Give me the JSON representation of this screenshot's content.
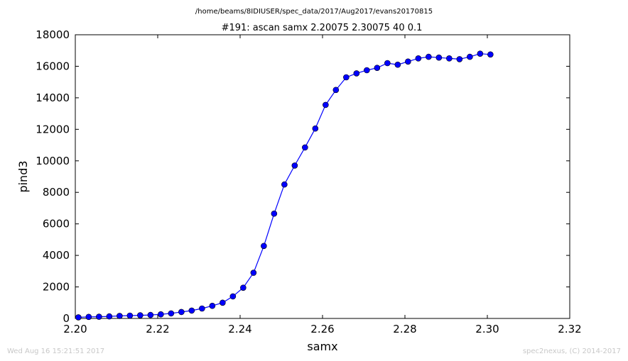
{
  "page": {
    "suptitle": "/home/beams/8IDIUSER/spec_data/2017/Aug2017/evans20170815",
    "footer_left": "Wed Aug 16 15:21:51 2017",
    "footer_right": "spec2nexus, (C) 2014-2017"
  },
  "chart_data": {
    "type": "line",
    "title": "#191: ascan  samx 2.20075 2.30075  40 0.1",
    "xlabel": "samx",
    "ylabel": "pind3",
    "xlim": [
      2.2,
      2.32
    ],
    "ylim": [
      0,
      18000
    ],
    "x_ticks": [
      "2.20",
      "2.22",
      "2.24",
      "2.26",
      "2.28",
      "2.30",
      "2.32"
    ],
    "y_ticks": [
      "0",
      "2000",
      "4000",
      "6000",
      "8000",
      "10000",
      "12000",
      "14000",
      "16000",
      "18000"
    ],
    "grid": false,
    "marker": "circle",
    "color": "#0000ff",
    "series": [
      {
        "x": [
          2.20075,
          2.20325,
          2.20575,
          2.20825,
          2.21075,
          2.21325,
          2.21575,
          2.21825,
          2.22075,
          2.22325,
          2.22575,
          2.22825,
          2.23075,
          2.23325,
          2.23575,
          2.23825,
          2.24075,
          2.24325,
          2.24575,
          2.24825,
          2.25075,
          2.25325,
          2.25575,
          2.25825,
          2.26075,
          2.26325,
          2.26575,
          2.26825,
          2.27075,
          2.27325,
          2.27575,
          2.27825,
          2.28075,
          2.28325,
          2.28575,
          2.28825,
          2.29075,
          2.29325,
          2.29575,
          2.29825,
          2.30075
        ],
        "values": [
          70,
          100,
          110,
          130,
          160,
          180,
          200,
          220,
          260,
          320,
          410,
          500,
          630,
          800,
          1000,
          1400,
          1950,
          2900,
          4600,
          6650,
          8500,
          9700,
          10850,
          12050,
          13550,
          14500,
          15300,
          15550,
          15750,
          15900,
          16200,
          16100,
          16300,
          16500,
          16600,
          16550,
          16500,
          16450,
          16600,
          16800,
          16750
        ]
      }
    ]
  }
}
